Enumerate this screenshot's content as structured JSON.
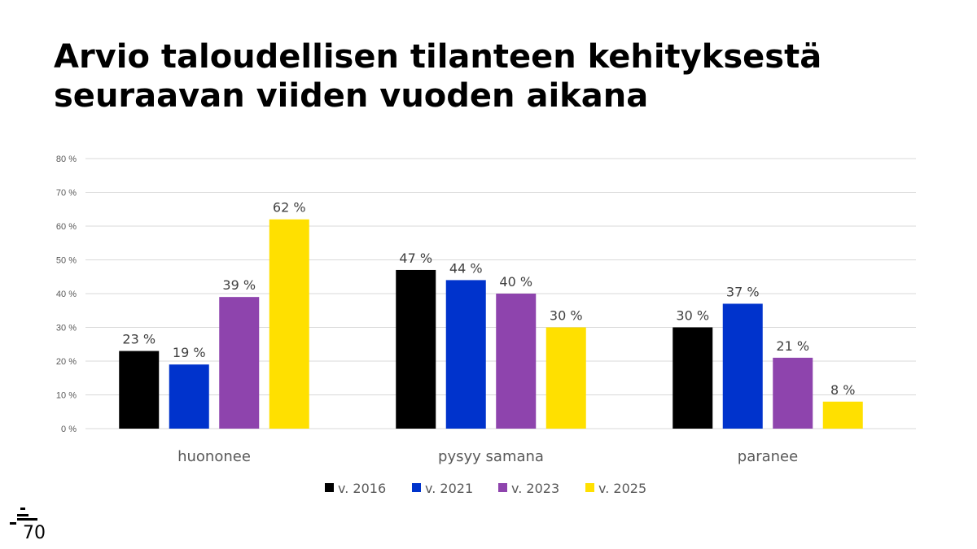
{
  "slide": {
    "title_line1": "Arvio taloudellisen tilanteen kehityksestä",
    "title_line2": "seuraavan viiden vuoden aikana",
    "logo_text": "70"
  },
  "chart_data": {
    "type": "bar",
    "title": "Arvio taloudellisen tilanteen kehityksestä seuraavan viiden vuoden aikana",
    "xlabel": "",
    "ylabel": "",
    "categories": [
      "huononee",
      "pysyy samana",
      "paranee"
    ],
    "series": [
      {
        "name": "v. 2016",
        "color": "#000000",
        "values": [
          23,
          47,
          30
        ]
      },
      {
        "name": "v. 2021",
        "color": "#0033CC",
        "values": [
          19,
          44,
          37
        ]
      },
      {
        "name": "v. 2023",
        "color": "#8E44AD",
        "values": [
          39,
          40,
          21
        ]
      },
      {
        "name": "v. 2025",
        "color": "#FFE000",
        "values": [
          62,
          30,
          8
        ]
      }
    ],
    "ylim": [
      0,
      80
    ],
    "yticks": [
      0,
      10,
      20,
      30,
      40,
      50,
      60,
      70,
      80
    ],
    "ytick_labels": [
      "0 %",
      "10 %",
      "20 %",
      "30 %",
      "40 %",
      "50 %",
      "60 %",
      "70 %",
      "80 %"
    ],
    "value_suffix": " %",
    "grid": true,
    "legend_position": "bottom"
  }
}
